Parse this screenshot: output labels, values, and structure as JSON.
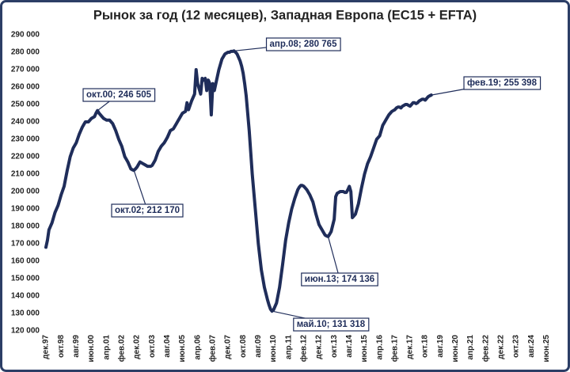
{
  "chart_data": {
    "type": "line",
    "title": "Рынок за год (12 месяцев), Западная Европа (EC15 + EFTA)",
    "color": "#1f2d5a",
    "grid": false,
    "ylim": [
      120000,
      290000
    ],
    "yticks": [
      {
        "value": 120000,
        "label": "120 000"
      },
      {
        "value": 130000,
        "label": "130 000"
      },
      {
        "value": 140000,
        "label": "140 000"
      },
      {
        "value": 150000,
        "label": "150 000"
      },
      {
        "value": 160000,
        "label": "160 000"
      },
      {
        "value": 170000,
        "label": "170 000"
      },
      {
        "value": 180000,
        "label": "180 000"
      },
      {
        "value": 190000,
        "label": "190 000"
      },
      {
        "value": 200000,
        "label": "200 000"
      },
      {
        "value": 210000,
        "label": "210 000"
      },
      {
        "value": 220000,
        "label": "220 000"
      },
      {
        "value": 230000,
        "label": "230 000"
      },
      {
        "value": 240000,
        "label": "240 000"
      },
      {
        "value": 250000,
        "label": "250 000"
      },
      {
        "value": 260000,
        "label": "260 000"
      },
      {
        "value": 270000,
        "label": "270 000"
      },
      {
        "value": 280000,
        "label": "280 000"
      },
      {
        "value": 290000,
        "label": "290 000"
      }
    ],
    "categories": [
      "дек.97",
      null,
      null,
      null,
      null,
      null,
      null,
      null,
      null,
      null,
      "окт.98",
      null,
      null,
      null,
      null,
      null,
      null,
      null,
      null,
      null,
      "авг.99",
      null,
      null,
      null,
      null,
      null,
      null,
      null,
      null,
      null,
      "июн.00",
      null,
      null,
      null,
      null,
      null,
      null,
      null,
      null,
      null,
      "апр.01",
      null,
      null,
      null,
      null,
      null,
      null,
      null,
      null,
      null,
      "фев.02",
      null,
      null,
      null,
      null,
      null,
      null,
      null,
      null,
      null,
      "дек.02",
      null,
      null,
      null,
      null,
      null,
      null,
      null,
      null,
      null,
      "окт.03",
      null,
      null,
      null,
      null,
      null,
      null,
      null,
      null,
      null,
      "авг.04",
      null,
      null,
      null,
      null,
      null,
      null,
      null,
      null,
      null,
      "июн.05",
      null,
      null,
      null,
      null,
      null,
      null,
      null,
      null,
      null,
      "апр.06",
      null,
      null,
      null,
      null,
      null,
      null,
      null,
      null,
      null,
      "фев.07",
      null,
      null,
      null,
      null,
      null,
      null,
      null,
      null,
      null,
      "дек.07",
      null,
      null,
      null,
      null,
      null,
      null,
      null,
      null,
      null,
      "окт.08",
      null,
      null,
      null,
      null,
      null,
      null,
      null,
      null,
      null,
      "авг.09",
      null,
      null,
      null,
      null,
      null,
      null,
      null,
      null,
      null,
      "июн.10",
      null,
      null,
      null,
      null,
      null,
      null,
      null,
      null,
      null,
      "апр.11",
      null,
      null,
      null,
      null,
      null,
      null,
      null,
      null,
      null,
      "фев.12",
      null,
      null,
      null,
      null,
      null,
      null,
      null,
      null,
      null,
      "дек.12",
      null,
      null,
      null,
      null,
      null,
      null,
      null,
      null,
      null,
      "окт.13",
      null,
      null,
      null,
      null,
      null,
      null,
      null,
      null,
      null,
      "авг.14",
      null,
      null,
      null,
      null,
      null,
      null,
      null,
      null,
      null,
      "июн.15",
      null,
      null,
      null,
      null,
      null,
      null,
      null,
      null,
      null,
      "апр.16",
      null,
      null,
      null,
      null,
      null,
      null,
      null,
      null,
      null,
      "фев.17",
      null,
      null,
      null,
      null,
      null,
      null,
      null,
      null,
      null,
      "дек.17",
      null,
      null,
      null,
      null,
      null,
      null,
      null,
      null,
      null,
      "окт.18",
      null,
      null,
      null,
      null,
      null,
      null,
      null,
      null,
      null,
      "авг.19",
      null,
      null,
      null,
      null,
      null,
      null,
      null,
      null,
      null,
      "июн.20",
      null,
      null,
      null,
      null,
      null,
      null,
      null,
      null,
      null,
      "апр.21",
      null,
      null,
      null,
      null,
      null,
      null,
      null,
      null,
      null,
      "фев.22",
      null,
      null,
      null,
      null,
      null,
      null,
      null,
      null,
      null,
      "дек.22",
      null,
      null,
      null,
      null,
      null,
      null,
      null,
      null,
      null,
      "окт.23",
      null,
      null,
      null,
      null,
      null,
      null,
      null,
      null,
      null,
      "авг.24",
      null,
      null,
      null,
      null,
      null,
      null,
      null,
      null,
      null,
      "июн.25",
      null,
      null,
      null,
      null,
      null
    ],
    "values": [
      168000,
      172000,
      178000,
      180000,
      182000,
      185000,
      188000,
      190000,
      192000,
      195000,
      198000,
      200500,
      203000,
      207500,
      212000,
      216000,
      220000,
      222500,
      225000,
      226500,
      228000,
      230500,
      233000,
      235000,
      237000,
      238500,
      240000,
      240000,
      240000,
      241000,
      242000,
      242500,
      243000,
      245000,
      246505,
      245000,
      244000,
      243000,
      242000,
      241500,
      241000,
      241000,
      241000,
      240000,
      239000,
      237000,
      235000,
      232500,
      230000,
      228000,
      226000,
      223000,
      220000,
      218500,
      217000,
      215000,
      213000,
      212500,
      212170,
      213000,
      214000,
      215500,
      217000,
      216500,
      216000,
      215500,
      215000,
      214500,
      214500,
      214500,
      215000,
      216500,
      218000,
      220500,
      223000,
      224500,
      226000,
      227000,
      228000,
      229500,
      231000,
      233000,
      235000,
      235500,
      236000,
      237500,
      239000,
      240500,
      242000,
      243500,
      245000,
      245500,
      246000,
      251000,
      247000,
      249500,
      252000,
      254000,
      256000,
      270000,
      262000,
      259000,
      256000,
      265000,
      264000,
      265000,
      258000,
      264000,
      262000,
      244000,
      262000,
      258000,
      262000,
      266000,
      270000,
      273000,
      276000,
      277500,
      279000,
      279500,
      280000,
      280000,
      280500,
      280500,
      280765,
      280000,
      279000,
      277000,
      275000,
      272000,
      268000,
      262000,
      255000,
      245000,
      235000,
      222500,
      210000,
      200000,
      190000,
      180000,
      170000,
      162500,
      155000,
      150000,
      145000,
      141500,
      138000,
      135000,
      132500,
      131318,
      132000,
      134000,
      136000,
      140500,
      145000,
      151500,
      158000,
      165000,
      172000,
      177000,
      182000,
      186000,
      190000,
      193000,
      196000,
      198500,
      201000,
      202500,
      203500,
      203500,
      203000,
      202000,
      201000,
      199500,
      198000,
      196000,
      194000,
      190500,
      187000,
      184000,
      181000,
      179500,
      178000,
      176500,
      175000,
      174500,
      174136,
      175500,
      177000,
      180500,
      184000,
      197000,
      199000,
      199500,
      200000,
      200000,
      200000,
      199500,
      199500,
      201000,
      203000,
      200000,
      185000,
      186000,
      187000,
      190000,
      193000,
      197500,
      202000,
      206000,
      210000,
      213000,
      216000,
      218000,
      220000,
      222500,
      225000,
      227500,
      230000,
      231000,
      232000,
      235000,
      238000,
      239500,
      241000,
      242500,
      244000,
      245000,
      246000,
      246500,
      247000,
      248000,
      248500,
      248500,
      248000,
      249000,
      249500,
      250000,
      250000,
      249500,
      249000,
      250000,
      251000,
      251000,
      250500,
      251000,
      252000,
      252500,
      253000,
      253000,
      252500,
      253500,
      254500,
      255000,
      255398,
      null,
      null,
      null,
      null,
      null,
      null,
      null,
      null,
      null,
      null,
      null,
      null,
      null,
      null,
      null,
      null,
      null,
      null,
      null,
      null,
      null,
      null,
      null,
      null,
      null,
      null,
      null,
      null,
      null,
      null,
      null,
      null,
      null,
      null,
      null,
      null,
      null,
      null,
      null,
      null,
      null,
      null,
      null,
      null,
      null,
      null,
      null,
      null,
      null,
      null,
      null,
      null,
      null,
      null,
      null,
      null,
      null,
      null,
      null,
      null,
      null,
      null,
      null,
      null,
      null,
      null,
      null,
      null,
      null,
      null,
      null,
      null,
      null,
      null,
      null,
      null,
      null,
      null,
      null,
      null,
      null
    ],
    "annotations": [
      "окт.00; 246 505",
      "окт.02; 212 170",
      "апр.08; 280 765",
      "май.10; 131 318",
      "июн.13; 174 136",
      "фев.19; 255 398"
    ]
  }
}
